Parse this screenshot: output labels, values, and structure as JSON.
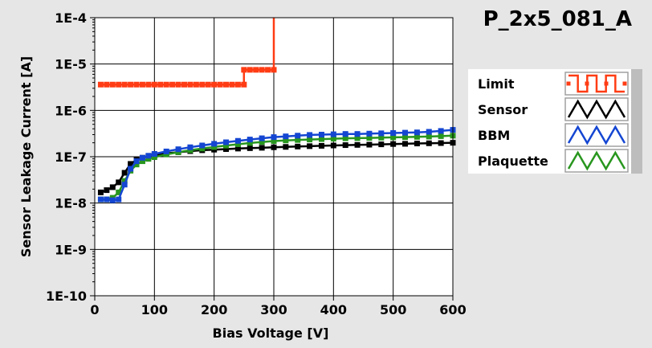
{
  "chart_data": {
    "type": "line",
    "title": "P_2x5_081_A",
    "xlabel": "Bias Voltage [V]",
    "ylabel": "Sensor Leakage Current [A]",
    "xlim": [
      0,
      600
    ],
    "ylim": [
      1e-10,
      0.0001
    ],
    "yscale": "log",
    "grid": true,
    "legend_placement": "right",
    "x_ticks": [
      {
        "value": 0,
        "label": "0"
      },
      {
        "value": 100,
        "label": "100"
      },
      {
        "value": 200,
        "label": "200"
      },
      {
        "value": 300,
        "label": "300"
      },
      {
        "value": 400,
        "label": "400"
      },
      {
        "value": 500,
        "label": "500"
      },
      {
        "value": 600,
        "label": "600"
      }
    ],
    "y_ticks": [
      {
        "value": 1e-10,
        "label": "1E-10"
      },
      {
        "value": 1e-09,
        "label": "1E-9"
      },
      {
        "value": 1e-08,
        "label": "1E-8"
      },
      {
        "value": 1e-07,
        "label": "1E-7"
      },
      {
        "value": 1e-06,
        "label": "1E-6"
      },
      {
        "value": 1e-05,
        "label": "1E-5"
      },
      {
        "value": 0.0001,
        "label": "1E-4"
      }
    ],
    "series": [
      {
        "name": "Limit",
        "color": "#ff3c14",
        "points": [
          [
            10,
            3.6e-06
          ],
          [
            20,
            3.6e-06
          ],
          [
            30,
            3.6e-06
          ],
          [
            40,
            3.6e-06
          ],
          [
            50,
            3.6e-06
          ],
          [
            60,
            3.6e-06
          ],
          [
            70,
            3.6e-06
          ],
          [
            80,
            3.6e-06
          ],
          [
            90,
            3.6e-06
          ],
          [
            100,
            3.6e-06
          ],
          [
            110,
            3.6e-06
          ],
          [
            120,
            3.6e-06
          ],
          [
            130,
            3.6e-06
          ],
          [
            140,
            3.6e-06
          ],
          [
            150,
            3.6e-06
          ],
          [
            160,
            3.6e-06
          ],
          [
            170,
            3.6e-06
          ],
          [
            180,
            3.6e-06
          ],
          [
            190,
            3.6e-06
          ],
          [
            200,
            3.6e-06
          ],
          [
            210,
            3.6e-06
          ],
          [
            220,
            3.6e-06
          ],
          [
            230,
            3.6e-06
          ],
          [
            240,
            3.6e-06
          ],
          [
            250,
            3.6e-06
          ],
          [
            250,
            7.5e-06
          ],
          [
            260,
            7.5e-06
          ],
          [
            270,
            7.5e-06
          ],
          [
            280,
            7.5e-06
          ],
          [
            290,
            7.5e-06
          ],
          [
            300,
            7.5e-06
          ],
          [
            300,
            0.0001
          ]
        ]
      },
      {
        "name": "Sensor",
        "color": "#000000",
        "points": [
          [
            10,
            1.7e-08
          ],
          [
            20,
            1.9e-08
          ],
          [
            30,
            2.2e-08
          ],
          [
            40,
            2.8e-08
          ],
          [
            50,
            4.5e-08
          ],
          [
            60,
            7e-08
          ],
          [
            70,
            8.5e-08
          ],
          [
            80,
            9.5e-08
          ],
          [
            90,
            1.02e-07
          ],
          [
            100,
            1.08e-07
          ],
          [
            120,
            1.18e-07
          ],
          [
            140,
            1.25e-07
          ],
          [
            160,
            1.32e-07
          ],
          [
            180,
            1.38e-07
          ],
          [
            200,
            1.42e-07
          ],
          [
            220,
            1.46e-07
          ],
          [
            240,
            1.5e-07
          ],
          [
            260,
            1.53e-07
          ],
          [
            280,
            1.56e-07
          ],
          [
            300,
            1.6e-07
          ],
          [
            320,
            1.63e-07
          ],
          [
            340,
            1.66e-07
          ],
          [
            360,
            1.69e-07
          ],
          [
            380,
            1.72e-07
          ],
          [
            400,
            1.75e-07
          ],
          [
            420,
            1.78e-07
          ],
          [
            440,
            1.8e-07
          ],
          [
            460,
            1.82e-07
          ],
          [
            480,
            1.85e-07
          ],
          [
            500,
            1.88e-07
          ],
          [
            520,
            1.9e-07
          ],
          [
            540,
            1.93e-07
          ],
          [
            560,
            1.95e-07
          ],
          [
            580,
            1.97e-07
          ],
          [
            600,
            2e-07
          ]
        ]
      },
      {
        "name": "BBM",
        "color": "#1446d2",
        "points": [
          [
            10,
            1.2e-08
          ],
          [
            20,
            1.2e-08
          ],
          [
            30,
            1.15e-08
          ],
          [
            40,
            1.2e-08
          ],
          [
            50,
            2.5e-08
          ],
          [
            60,
            5.5e-08
          ],
          [
            70,
            8e-08
          ],
          [
            80,
            9.5e-08
          ],
          [
            90,
            1.05e-07
          ],
          [
            100,
            1.15e-07
          ],
          [
            120,
            1.3e-07
          ],
          [
            140,
            1.45e-07
          ],
          [
            160,
            1.6e-07
          ],
          [
            180,
            1.75e-07
          ],
          [
            200,
            1.9e-07
          ],
          [
            220,
            2.05e-07
          ],
          [
            240,
            2.2e-07
          ],
          [
            260,
            2.35e-07
          ],
          [
            280,
            2.5e-07
          ],
          [
            300,
            2.65e-07
          ],
          [
            320,
            2.75e-07
          ],
          [
            340,
            2.85e-07
          ],
          [
            360,
            2.95e-07
          ],
          [
            380,
            3e-07
          ],
          [
            400,
            3.05e-07
          ],
          [
            420,
            3.1e-07
          ],
          [
            440,
            3.1e-07
          ],
          [
            460,
            3.15e-07
          ],
          [
            480,
            3.2e-07
          ],
          [
            500,
            3.25e-07
          ],
          [
            520,
            3.3e-07
          ],
          [
            540,
            3.35e-07
          ],
          [
            560,
            3.45e-07
          ],
          [
            580,
            3.6e-07
          ],
          [
            600,
            3.8e-07
          ]
        ]
      },
      {
        "name": "Plaquette",
        "color": "#28961e",
        "points": [
          [
            10,
            1.2e-08
          ],
          [
            20,
            1.2e-08
          ],
          [
            30,
            1.3e-08
          ],
          [
            40,
            1.7e-08
          ],
          [
            50,
            3e-08
          ],
          [
            60,
            5e-08
          ],
          [
            70,
            6.8e-08
          ],
          [
            80,
            8e-08
          ],
          [
            90,
            9e-08
          ],
          [
            100,
            9.8e-08
          ],
          [
            120,
            1.12e-07
          ],
          [
            140,
            1.25e-07
          ],
          [
            160,
            1.38e-07
          ],
          [
            180,
            1.5e-07
          ],
          [
            200,
            1.62e-07
          ],
          [
            220,
            1.74e-07
          ],
          [
            240,
            1.86e-07
          ],
          [
            260,
            1.98e-07
          ],
          [
            280,
            2.08e-07
          ],
          [
            300,
            2.18e-07
          ],
          [
            320,
            2.25e-07
          ],
          [
            340,
            2.3e-07
          ],
          [
            360,
            2.35e-07
          ],
          [
            380,
            2.4e-07
          ],
          [
            400,
            2.45e-07
          ],
          [
            420,
            2.5e-07
          ],
          [
            440,
            2.52e-07
          ],
          [
            460,
            2.55e-07
          ],
          [
            480,
            2.58e-07
          ],
          [
            500,
            2.62e-07
          ],
          [
            520,
            2.65e-07
          ],
          [
            540,
            2.68e-07
          ],
          [
            560,
            2.72e-07
          ],
          [
            580,
            2.78e-07
          ],
          [
            600,
            2.85e-07
          ]
        ]
      }
    ]
  }
}
